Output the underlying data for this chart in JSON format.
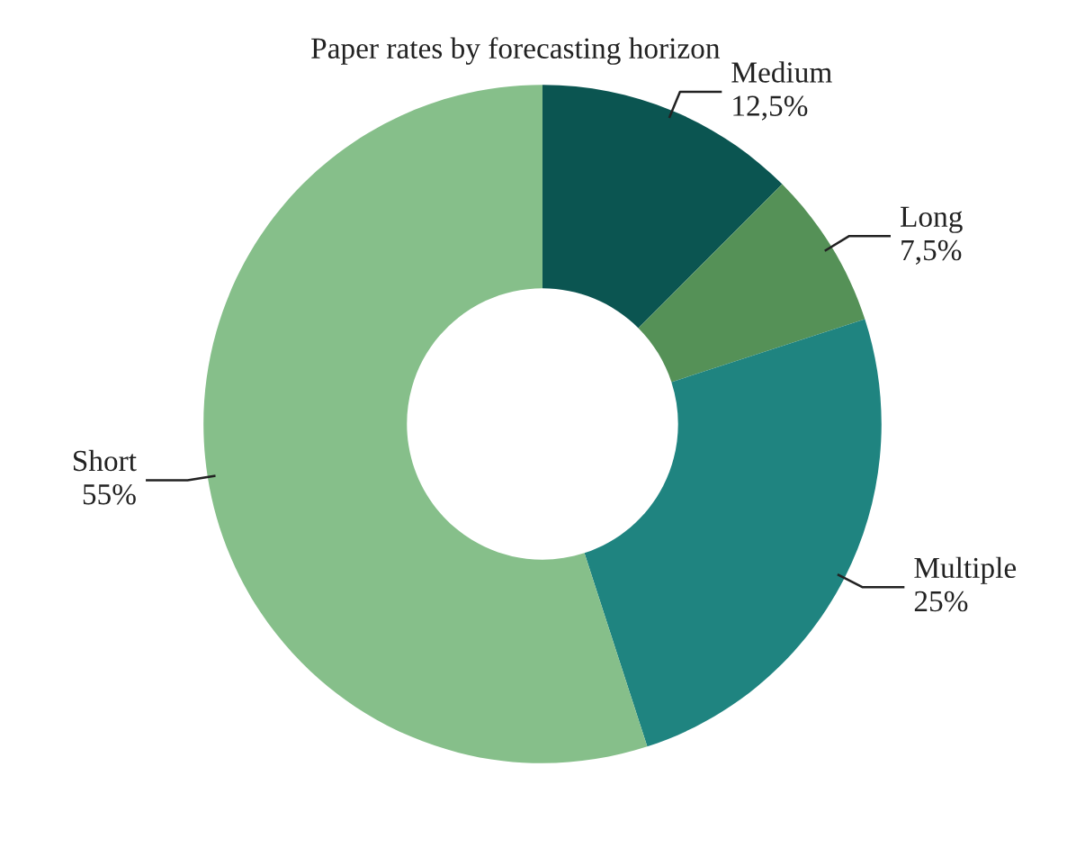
{
  "chart_data": {
    "type": "donut",
    "title": "Paper rates by forecasting horizon",
    "categories": [
      "Medium",
      "Long",
      "Multiple",
      "Short"
    ],
    "values": [
      12.5,
      7.5,
      25,
      55
    ],
    "value_labels": [
      "12,5%",
      "7,5%",
      "25%",
      "55%"
    ],
    "colors": [
      "#0b5551",
      "#559157",
      "#1f8480",
      "#86bf8a"
    ],
    "legend": false
  }
}
